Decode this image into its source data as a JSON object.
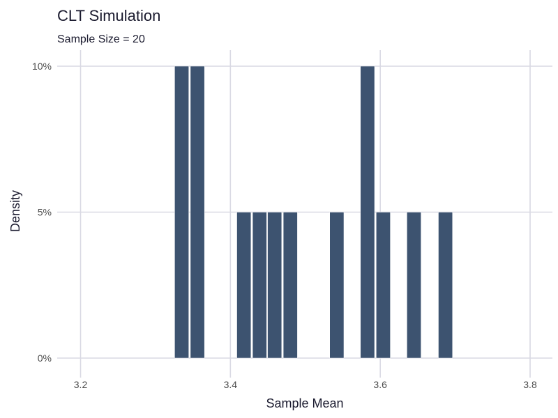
{
  "chart_data": {
    "type": "bar",
    "title": "CLT Simulation",
    "subtitle": "Sample Size = 20",
    "xlabel": "Sample Mean",
    "ylabel": "Density",
    "xlim": [
      3.17,
      3.83
    ],
    "ylim": [
      0,
      0.1
    ],
    "x_ticks": [
      {
        "value": 3.2,
        "label": "3.2"
      },
      {
        "value": 3.4,
        "label": "3.4"
      },
      {
        "value": 3.6,
        "label": "3.6"
      },
      {
        "value": 3.8,
        "label": "3.8"
      }
    ],
    "y_ticks": [
      {
        "value": 0,
        "label": "0%"
      },
      {
        "value": 0.05,
        "label": "5%"
      },
      {
        "value": 0.1,
        "label": "10%"
      }
    ],
    "bin_width": 0.0207,
    "bins": [
      {
        "center": 3.335,
        "value": 0.1
      },
      {
        "center": 3.356,
        "value": 0.1
      },
      {
        "center": 3.418,
        "value": 0.05
      },
      {
        "center": 3.439,
        "value": 0.05
      },
      {
        "center": 3.459,
        "value": 0.05
      },
      {
        "center": 3.48,
        "value": 0.05
      },
      {
        "center": 3.542,
        "value": 0.05
      },
      {
        "center": 3.583,
        "value": 0.1
      },
      {
        "center": 3.604,
        "value": 0.05
      },
      {
        "center": 3.645,
        "value": 0.05
      },
      {
        "center": 3.687,
        "value": 0.05
      }
    ],
    "bar_color": "#3d5370",
    "grid": true,
    "grid_color": "#d9d9e3"
  }
}
